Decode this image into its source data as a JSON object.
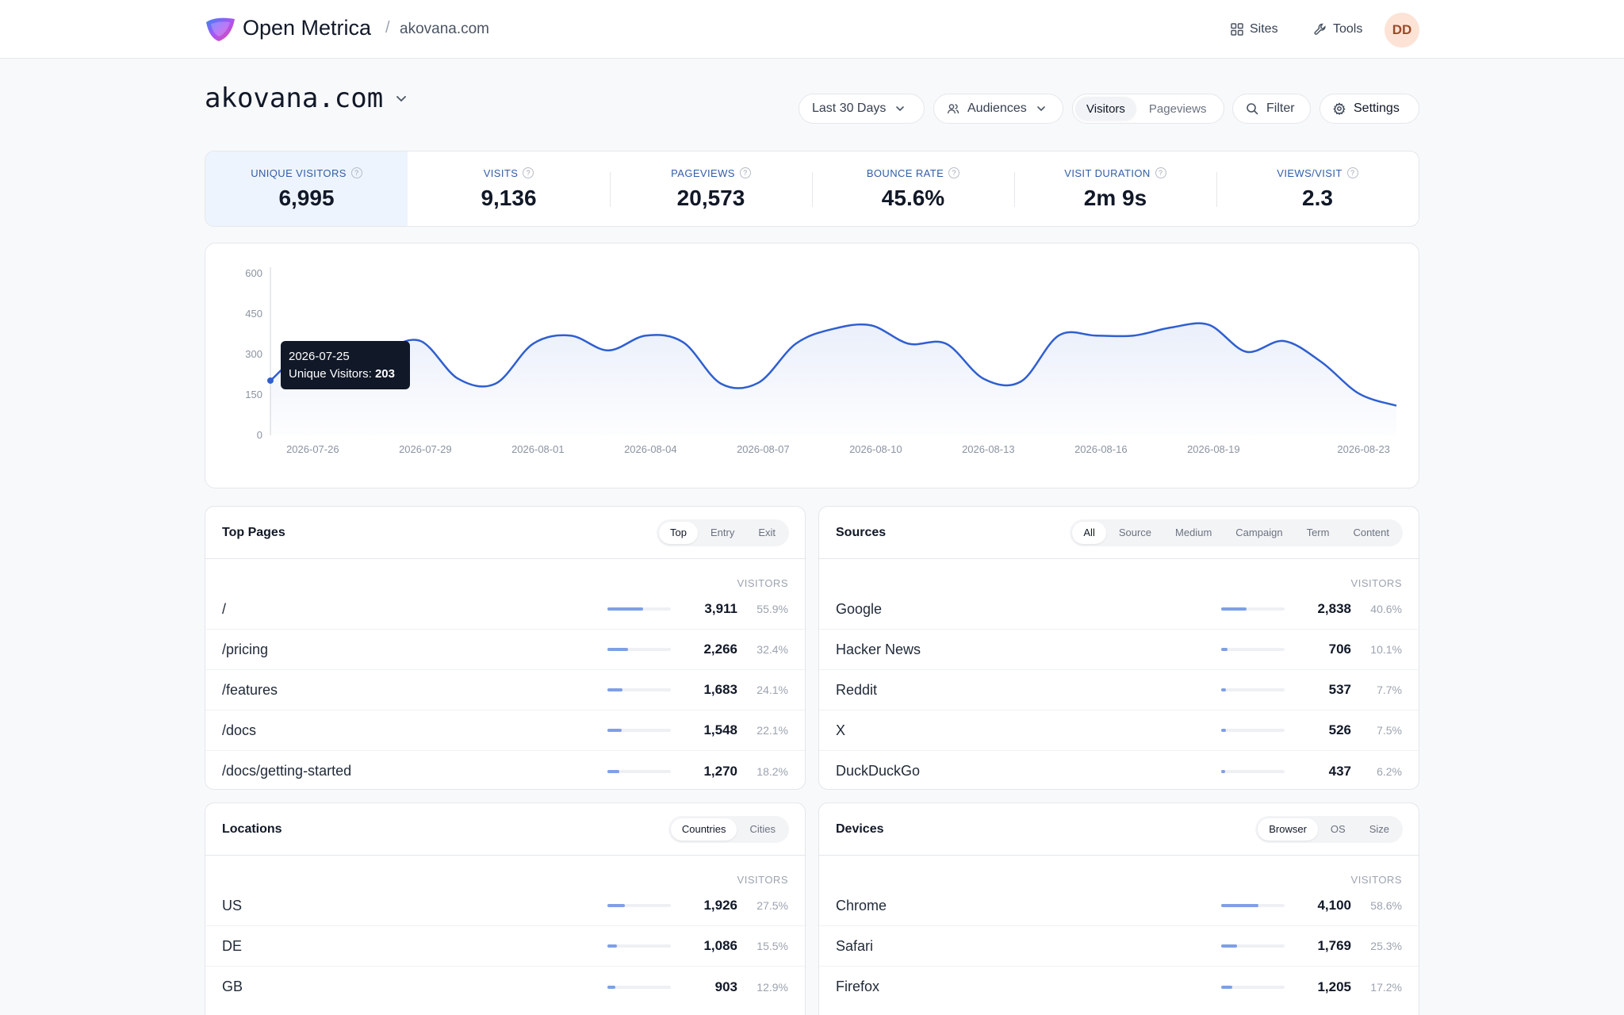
{
  "app": {
    "name": "Open Metrica",
    "breadcrumb_sep": "/",
    "breadcrumb_site": "akovana.com"
  },
  "nav": {
    "sites": "Sites",
    "tools": "Tools",
    "avatar": "DD"
  },
  "header": {
    "site": "akovana.com",
    "date_range": "Last 30 Days",
    "audiences": "Audiences",
    "metric_toggle": [
      "Visitors",
      "Pageviews"
    ],
    "filter": "Filter",
    "settings": "Settings"
  },
  "stats": [
    {
      "label": "UNIQUE VISITORS",
      "value": "6,995"
    },
    {
      "label": "VISITS",
      "value": "9,136"
    },
    {
      "label": "PAGEVIEWS",
      "value": "20,573"
    },
    {
      "label": "BOUNCE RATE",
      "value": "45.6%"
    },
    {
      "label": "VISIT DURATION",
      "value": "2m 9s"
    },
    {
      "label": "VIEWS/VISIT",
      "value": "2.3"
    }
  ],
  "tooltip": {
    "date": "2026-07-25",
    "label": "Unique Visitors:",
    "value": "203"
  },
  "chart_data": {
    "type": "area",
    "title": "",
    "xlabel": "",
    "ylabel": "",
    "ylim": [
      0,
      600
    ],
    "yticks": [
      0,
      150,
      300,
      450,
      600
    ],
    "xticks": [
      "2026-07-26",
      "2026-07-29",
      "2026-08-01",
      "2026-08-04",
      "2026-08-07",
      "2026-08-10",
      "2026-08-13",
      "2026-08-16",
      "2026-08-19",
      "2026-08-23"
    ],
    "grid": false,
    "color": "#2f5fd0",
    "x": [
      "2026-07-25",
      "2026-07-26",
      "2026-07-27",
      "2026-07-28",
      "2026-07-29",
      "2026-07-30",
      "2026-07-31",
      "2026-08-01",
      "2026-08-02",
      "2026-08-03",
      "2026-08-04",
      "2026-08-05",
      "2026-08-06",
      "2026-08-07",
      "2026-08-08",
      "2026-08-09",
      "2026-08-10",
      "2026-08-11",
      "2026-08-12",
      "2026-08-13",
      "2026-08-14",
      "2026-08-15",
      "2026-08-16",
      "2026-08-17",
      "2026-08-18",
      "2026-08-19",
      "2026-08-20",
      "2026-08-21",
      "2026-08-22",
      "2026-08-23",
      "2026-08-24"
    ],
    "series": [
      {
        "name": "Unique Visitors",
        "values": [
          203,
          320,
          310,
          320,
          350,
          210,
          192,
          340,
          370,
          315,
          370,
          345,
          192,
          195,
          340,
          395,
          408,
          340,
          340,
          210,
          200,
          370,
          370,
          370,
          400,
          410,
          310,
          350,
          272,
          155,
          110
        ]
      }
    ]
  },
  "top_pages": {
    "title": "Top Pages",
    "tabs": [
      "Top",
      "Entry",
      "Exit"
    ],
    "column": "VISITORS",
    "rows": [
      {
        "label": "/",
        "value": "3,911",
        "pct": "55.9%",
        "share": 0.559
      },
      {
        "label": "/pricing",
        "value": "2,266",
        "pct": "32.4%",
        "share": 0.324
      },
      {
        "label": "/features",
        "value": "1,683",
        "pct": "24.1%",
        "share": 0.241
      },
      {
        "label": "/docs",
        "value": "1,548",
        "pct": "22.1%",
        "share": 0.221
      },
      {
        "label": "/docs/getting-started",
        "value": "1,270",
        "pct": "18.2%",
        "share": 0.182
      }
    ]
  },
  "sources": {
    "title": "Sources",
    "tabs": [
      "All",
      "Source",
      "Medium",
      "Campaign",
      "Term",
      "Content"
    ],
    "column": "VISITORS",
    "rows": [
      {
        "label": "Google",
        "value": "2,838",
        "pct": "40.6%",
        "share": 0.406
      },
      {
        "label": "Hacker News",
        "value": "706",
        "pct": "10.1%",
        "share": 0.101
      },
      {
        "label": "Reddit",
        "value": "537",
        "pct": "7.7%",
        "share": 0.077
      },
      {
        "label": "X",
        "value": "526",
        "pct": "7.5%",
        "share": 0.075
      },
      {
        "label": "DuckDuckGo",
        "value": "437",
        "pct": "6.2%",
        "share": 0.062
      }
    ]
  },
  "locations": {
    "title": "Locations",
    "tabs": [
      "Countries",
      "Cities"
    ],
    "column": "VISITORS",
    "rows": [
      {
        "label": "US",
        "value": "1,926",
        "pct": "27.5%",
        "share": 0.275
      },
      {
        "label": "DE",
        "value": "1,086",
        "pct": "15.5%",
        "share": 0.155
      },
      {
        "label": "GB",
        "value": "903",
        "pct": "12.9%",
        "share": 0.129
      }
    ]
  },
  "devices": {
    "title": "Devices",
    "tabs": [
      "Browser",
      "OS",
      "Size"
    ],
    "column": "VISITORS",
    "rows": [
      {
        "label": "Chrome",
        "value": "4,100",
        "pct": "58.6%",
        "share": 0.586
      },
      {
        "label": "Safari",
        "value": "1,769",
        "pct": "25.3%",
        "share": 0.253
      },
      {
        "label": "Firefox",
        "value": "1,205",
        "pct": "17.2%",
        "share": 0.172
      }
    ]
  }
}
